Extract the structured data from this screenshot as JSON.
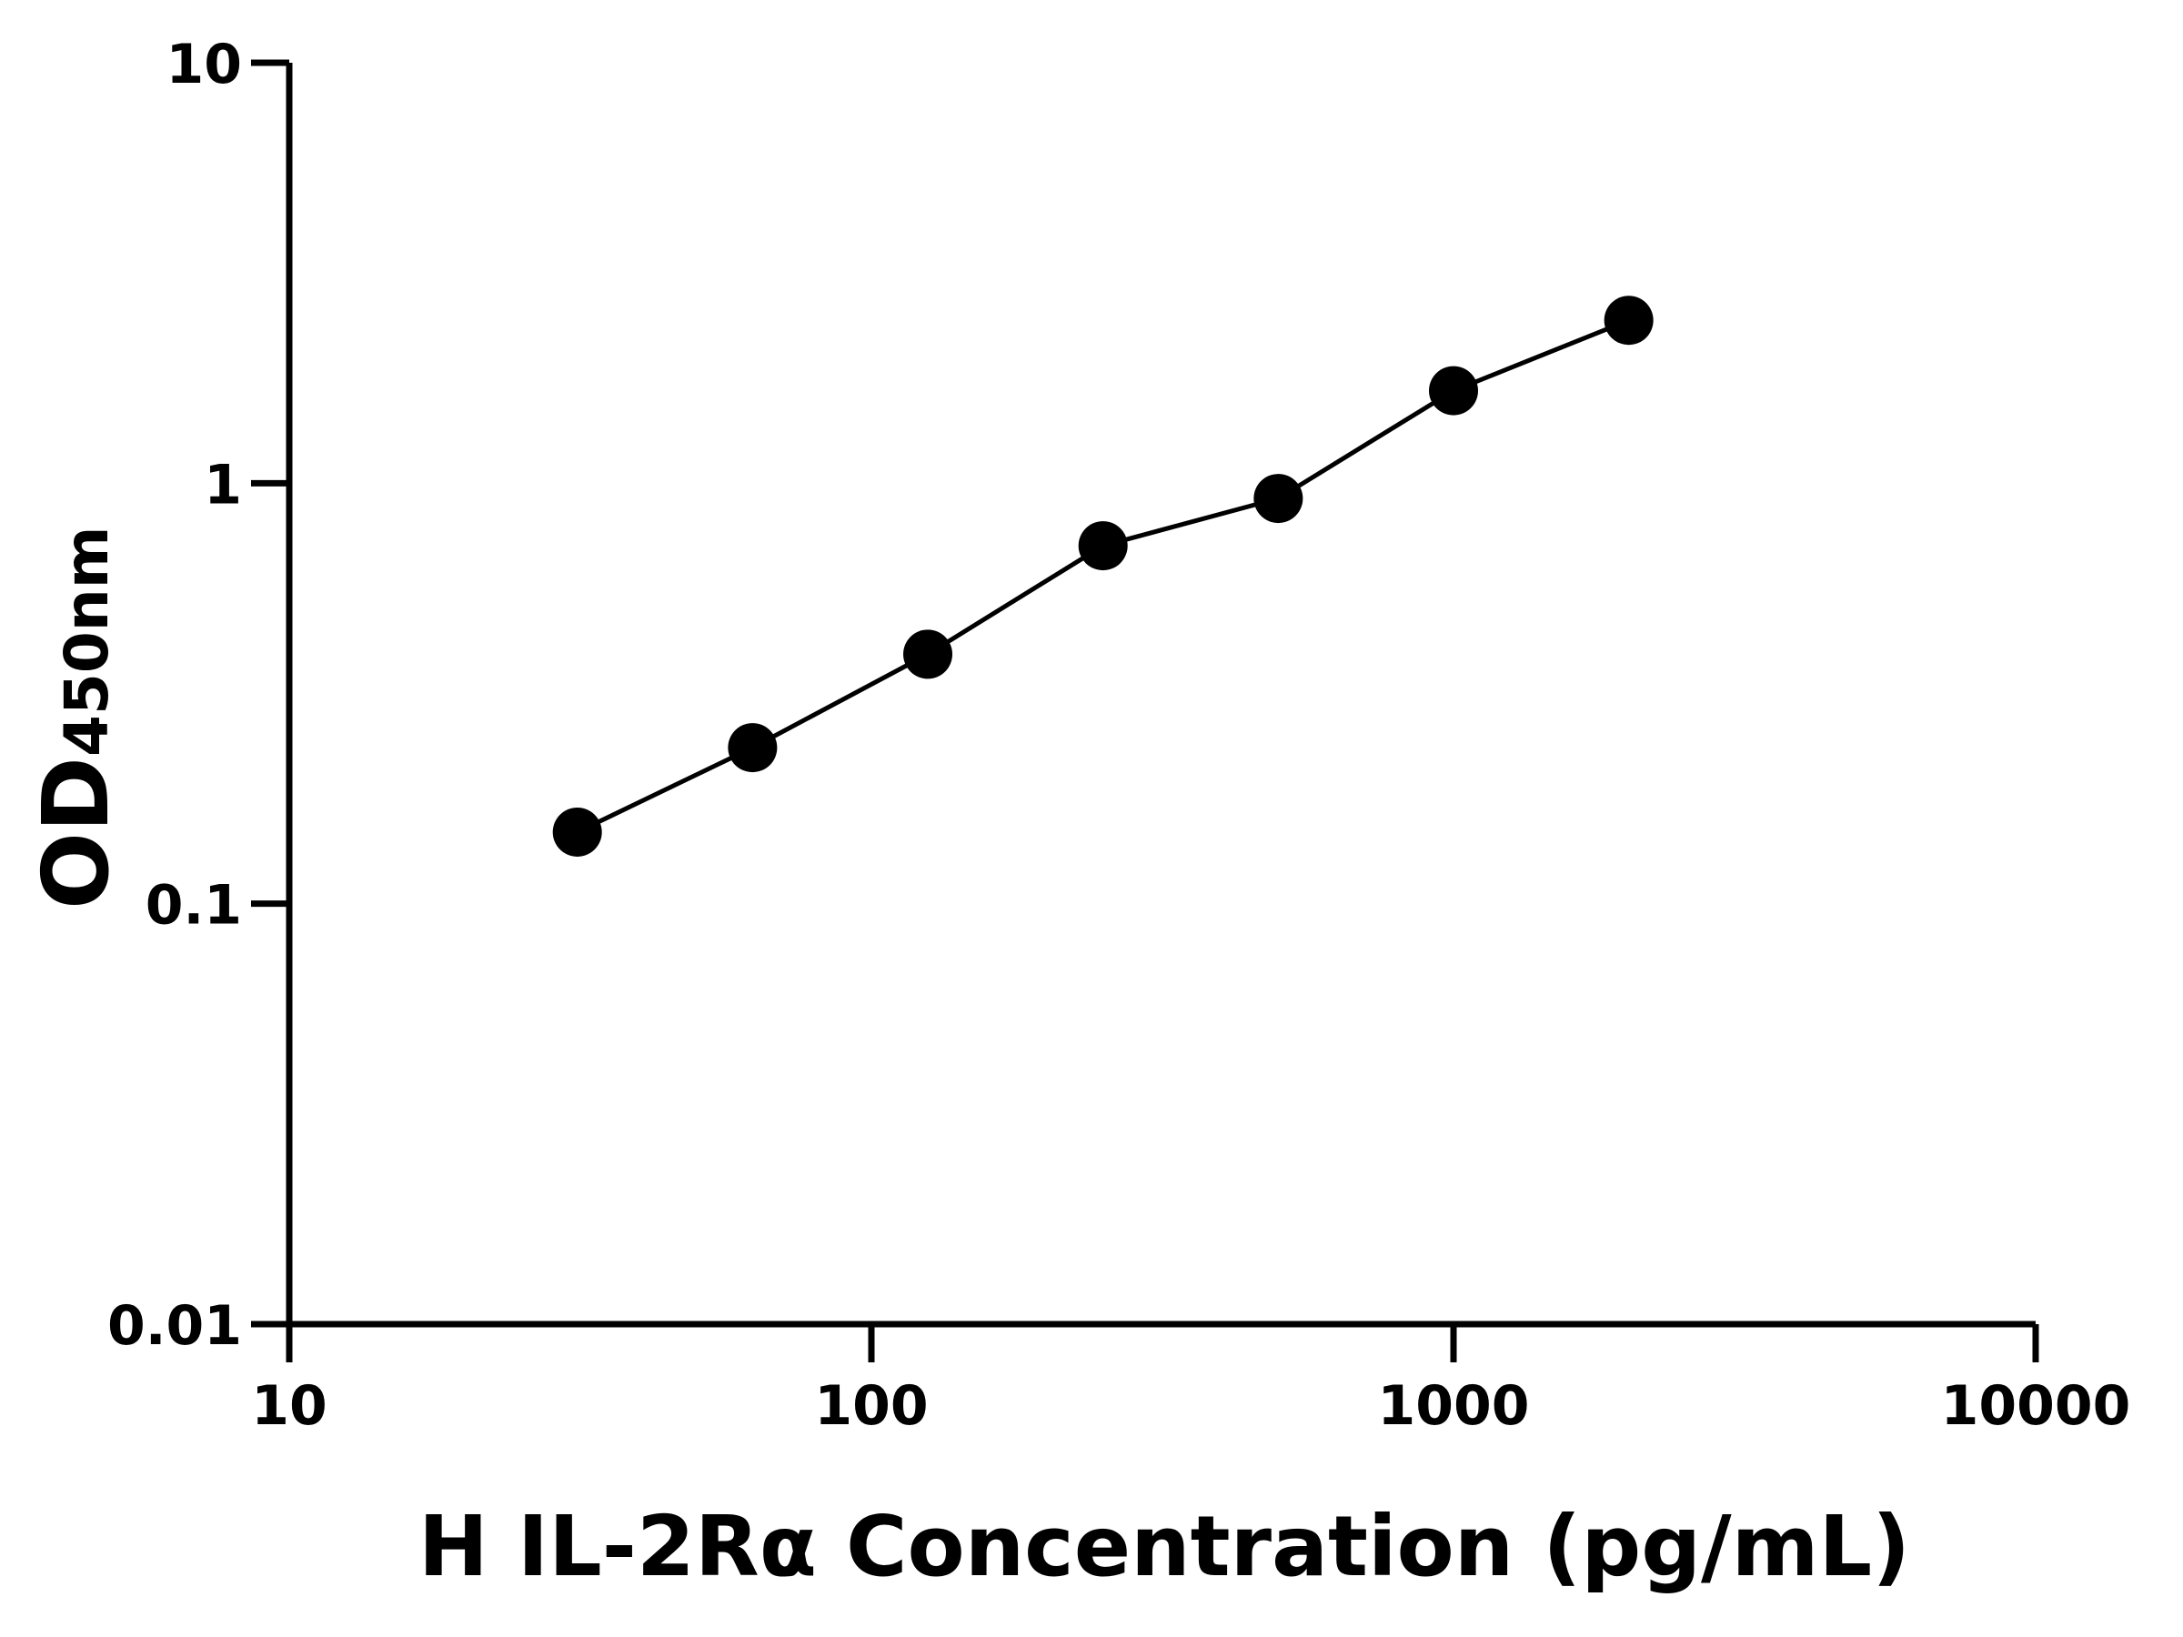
{
  "chart_data": {
    "type": "line",
    "title": "",
    "xlabel": "H IL-2Rα Concentration (pg/mL)",
    "ylabel_main": "OD",
    "ylabel_sub": "450nm",
    "x_scale": "log",
    "y_scale": "log",
    "xlim": [
      10,
      10000
    ],
    "ylim": [
      0.01,
      10
    ],
    "x_ticks": [
      "10",
      "100",
      "1000",
      "10000"
    ],
    "y_ticks": [
      "0.01",
      "0.1",
      "1",
      "10"
    ],
    "grid": false,
    "marker": "filled-circle",
    "color": "#000000",
    "series": [
      {
        "x": [
          31.25,
          62.5,
          125,
          250,
          500,
          1000,
          2000
        ],
        "y": [
          0.148,
          0.235,
          0.392,
          0.71,
          0.92,
          1.66,
          2.44
        ]
      }
    ]
  }
}
